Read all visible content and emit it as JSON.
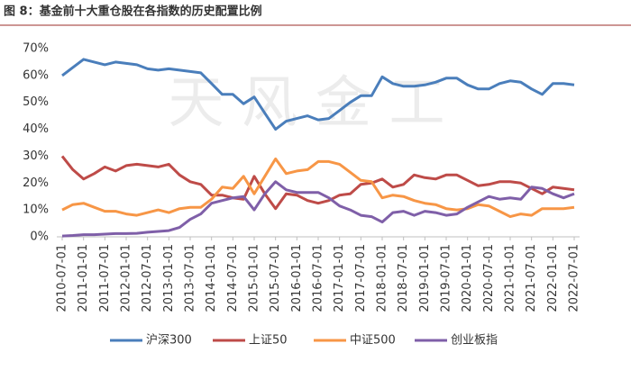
{
  "chart_data": {
    "type": "line",
    "title": "图 8：基金前十大重仓股在各指数的历史配置比例",
    "watermark": "天 风 金 工",
    "categories": [
      "2010-07-01",
      null,
      "2011-01-01",
      null,
      "2011-07-01",
      null,
      "2012-01-01",
      null,
      "2012-07-01",
      null,
      "2013-01-01",
      null,
      "2013-07-01",
      null,
      "2014-01-01",
      null,
      "2014-07-01",
      null,
      "2015-01-01",
      null,
      "2015-07-01",
      null,
      "2016-01-01",
      null,
      "2016-07-01",
      null,
      "2017-01-01",
      null,
      "2017-07-01",
      null,
      "2018-01-01",
      null,
      "2018-07-01",
      null,
      "2019-01-01",
      null,
      "2019-07-01",
      null,
      "2020-01-01",
      null,
      "2020-07-01",
      null,
      "2021-01-01",
      null,
      "2021-07-01",
      null,
      "2022-01-01",
      null,
      "2022-07-01"
    ],
    "series": [
      {
        "name": "沪深300",
        "color": "#4a7ebb",
        "values": [
          60,
          63,
          66,
          65,
          64,
          65,
          64.5,
          64,
          62.5,
          62,
          62.5,
          62,
          61.5,
          61,
          57,
          53,
          53,
          49.5,
          52,
          46,
          40,
          43,
          44,
          45,
          43.5,
          44,
          47,
          50,
          52.5,
          52.5,
          59.5,
          57,
          56,
          56,
          56.5,
          57.5,
          59,
          59,
          56.5,
          55,
          55,
          57,
          58,
          57.5,
          55,
          53,
          57,
          57,
          56.5
        ]
      },
      {
        "name": "上证50",
        "color": "#be4b48",
        "values": [
          30,
          25,
          21.5,
          23.5,
          26,
          24.5,
          26.5,
          27,
          26.5,
          26,
          27,
          23,
          20.5,
          19.5,
          15.5,
          15.5,
          14.5,
          14,
          22.5,
          16,
          10.5,
          16,
          15.5,
          13.5,
          12.5,
          13.5,
          15.5,
          16,
          19.5,
          20,
          21.5,
          18.5,
          19.5,
          23,
          22,
          21.5,
          23,
          23,
          21,
          19,
          19.5,
          20.5,
          20.5,
          20,
          18,
          16,
          18.5,
          18,
          17.5
        ]
      },
      {
        "name": "中证500",
        "color": "#f79646",
        "values": [
          10,
          12,
          12.5,
          11,
          9.5,
          9.5,
          8.5,
          8,
          9,
          10,
          9,
          10.5,
          11,
          11,
          14,
          18.5,
          18,
          22.5,
          16,
          22.5,
          29,
          23.5,
          24.5,
          25,
          28,
          28,
          27,
          24,
          21,
          20.5,
          14.5,
          15.5,
          15,
          13.5,
          12.5,
          12,
          10.5,
          10,
          10.5,
          12,
          11.5,
          9.5,
          7.5,
          8.5,
          8,
          10.5,
          10.5,
          10.5,
          11
        ]
      },
      {
        "name": "创业板指",
        "color": "#7f5fa8",
        "values": [
          0.3,
          0.5,
          0.8,
          0.8,
          1,
          1.2,
          1.2,
          1.3,
          1.7,
          2,
          2.3,
          3.5,
          6.5,
          8.5,
          12.5,
          13.5,
          14.5,
          15,
          10,
          16,
          20.5,
          17.5,
          16.5,
          16.5,
          16.5,
          14.5,
          11.5,
          10,
          8,
          7.5,
          5.5,
          9,
          9.5,
          8,
          9.5,
          9,
          8,
          8.5,
          11,
          13,
          15,
          14,
          14.5,
          14,
          18.5,
          18,
          16,
          14.5,
          16
        ]
      }
    ],
    "ylim": [
      0,
      70
    ],
    "yticks": [
      {
        "value": 0,
        "label": "0%"
      },
      {
        "value": 10,
        "label": "10%"
      },
      {
        "value": 20,
        "label": "20%"
      },
      {
        "value": 30,
        "label": "30%"
      },
      {
        "value": 40,
        "label": "40%"
      },
      {
        "value": 50,
        "label": "50%"
      },
      {
        "value": 60,
        "label": "60%"
      },
      {
        "value": 70,
        "label": "70%"
      }
    ],
    "grid": false,
    "legend": "bottom"
  }
}
